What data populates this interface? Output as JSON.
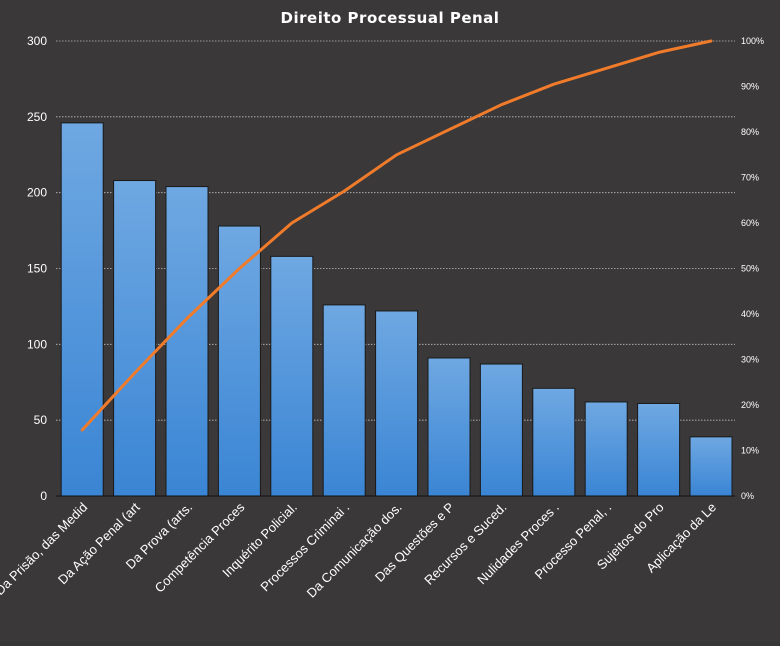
{
  "chart_data": {
    "type": "bar",
    "title": "Direito  Processual  Penal",
    "categories": [
      "Da Prisão, das Medid",
      "Da Ação Penal (art",
      "Da Prova (arts.",
      "Competência Proces",
      "Inquérito Policial.",
      "Processos Criminai .",
      "Da Comunicação dos.",
      "Das Questões e P",
      "Recursos e Suced.",
      "Nulidades Proces .",
      "Processo Penal, .",
      "Sujeitos do Pro",
      "Aplicação da Le"
    ],
    "series": [
      {
        "values": [
          246,
          208,
          204,
          178,
          158,
          126,
          122,
          91,
          87,
          71,
          62,
          61,
          39
        ]
      }
    ],
    "line_series": [
      {
        "axis": "secondary",
        "values": [
          14.5,
          27,
          39,
          50,
          60,
          67,
          75,
          80.5,
          86,
          90.5,
          94,
          97.5,
          100
        ]
      }
    ],
    "ylim": [
      0,
      300
    ],
    "yticks": [
      "0",
      "50",
      "100",
      "150",
      "200",
      "250",
      "300"
    ],
    "y2lim": [
      0,
      100
    ],
    "y2ticks": [
      "0%",
      "10%",
      "20%",
      "30%",
      "40%",
      "50%",
      "60%",
      "70%",
      "80%",
      "90%",
      "100%"
    ],
    "grid": true,
    "legend": "none",
    "colors": {
      "bar_top": "#6fa8e2",
      "bar_bottom": "#3a85d4",
      "line": "#f07b2b",
      "grid": "#bfbfbf"
    }
  }
}
